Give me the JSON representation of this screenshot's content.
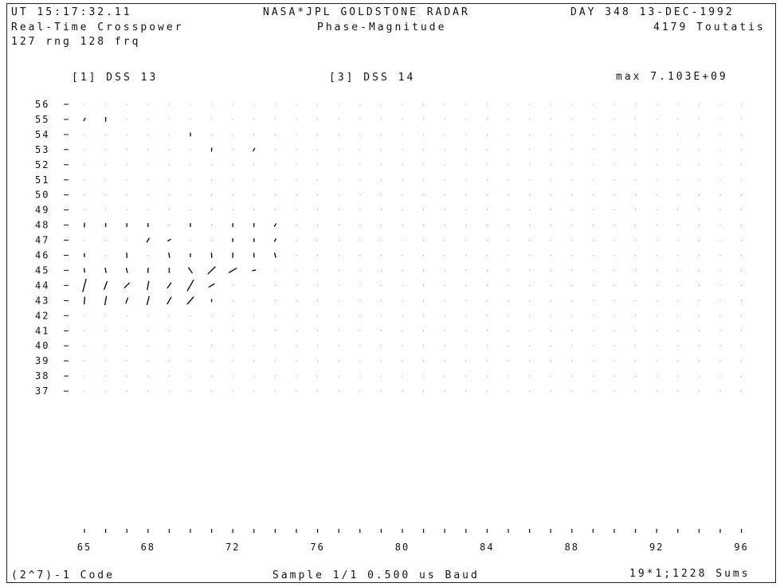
{
  "header": {
    "ut_time": "UT 15:17:32.11",
    "mode": "Real-Time Crosspower",
    "dims": "127 rng 128 frq",
    "title": "NASA*JPL GOLDSTONE RADAR",
    "subtitle": "Phase-Magnitude",
    "date": "DAY 348 13-DEC-1992",
    "target": "4179 Toutatis",
    "station_a": "[1] DSS 13",
    "station_b": "[3] DSS 14",
    "max_label": "max 7.103E+09"
  },
  "footer": {
    "code": "(2^7)-1 Code",
    "sample": "Sample 1/1 0.500 us Baud",
    "sums": "19*1;1228 Sums"
  },
  "chart_data": {
    "type": "scatter",
    "title": "Phase-Magnitude",
    "xlabel": "",
    "ylabel": "",
    "x_ticks": [
      65,
      68,
      72,
      76,
      80,
      84,
      88,
      92,
      96
    ],
    "y_ticks": [
      56,
      55,
      54,
      53,
      52,
      51,
      50,
      49,
      48,
      47,
      46,
      45,
      44,
      43,
      42,
      41,
      40,
      39,
      38,
      37
    ],
    "xlim": [
      65,
      96
    ],
    "ylim": [
      37,
      56
    ],
    "grid": "dots",
    "vectors": [
      {
        "x": 65,
        "y": 45,
        "len": 0.25,
        "angle": 80
      },
      {
        "x": 66,
        "y": 45,
        "len": 0.3,
        "angle": 80
      },
      {
        "x": 67,
        "y": 45,
        "len": 0.3,
        "angle": 75
      },
      {
        "x": 68,
        "y": 45,
        "len": 0.3,
        "angle": 95
      },
      {
        "x": 69,
        "y": 45,
        "len": 0.3,
        "angle": 90
      },
      {
        "x": 70,
        "y": 45,
        "len": 0.4,
        "angle": 55
      },
      {
        "x": 71,
        "y": 45,
        "len": 0.65,
        "angle": 135
      },
      {
        "x": 72,
        "y": 45,
        "len": 0.55,
        "angle": 150
      },
      {
        "x": 73,
        "y": 45,
        "len": 0.2,
        "angle": 170
      },
      {
        "x": 65,
        "y": 44,
        "len": 0.85,
        "angle": 105
      },
      {
        "x": 66,
        "y": 44,
        "len": 0.55,
        "angle": 110
      },
      {
        "x": 67,
        "y": 44,
        "len": 0.45,
        "angle": 135
      },
      {
        "x": 68,
        "y": 44,
        "len": 0.55,
        "angle": 100
      },
      {
        "x": 69,
        "y": 44,
        "len": 0.4,
        "angle": 125
      },
      {
        "x": 70,
        "y": 44,
        "len": 0.8,
        "angle": 120
      },
      {
        "x": 71,
        "y": 44,
        "len": 0.4,
        "angle": 150
      },
      {
        "x": 65,
        "y": 43,
        "len": 0.45,
        "angle": 95
      },
      {
        "x": 66,
        "y": 43,
        "len": 0.55,
        "angle": 100
      },
      {
        "x": 67,
        "y": 43,
        "len": 0.35,
        "angle": 110
      },
      {
        "x": 68,
        "y": 43,
        "len": 0.55,
        "angle": 105
      },
      {
        "x": 69,
        "y": 43,
        "len": 0.5,
        "angle": 120
      },
      {
        "x": 70,
        "y": 43,
        "len": 0.6,
        "angle": 130
      },
      {
        "x": 71,
        "y": 43,
        "len": 0.15,
        "angle": 90
      },
      {
        "x": 65,
        "y": 46,
        "len": 0.2,
        "angle": 90
      },
      {
        "x": 67,
        "y": 46,
        "len": 0.3,
        "angle": 85
      },
      {
        "x": 69,
        "y": 46,
        "len": 0.3,
        "angle": 80
      },
      {
        "x": 70,
        "y": 46,
        "len": 0.2,
        "angle": 90
      },
      {
        "x": 71,
        "y": 46,
        "len": 0.3,
        "angle": 85
      },
      {
        "x": 72,
        "y": 46,
        "len": 0.3,
        "angle": 95
      },
      {
        "x": 73,
        "y": 46,
        "len": 0.25,
        "angle": 85
      },
      {
        "x": 74,
        "y": 46,
        "len": 0.3,
        "angle": 75
      },
      {
        "x": 68,
        "y": 47,
        "len": 0.3,
        "angle": 120
      },
      {
        "x": 69,
        "y": 47,
        "len": 0.2,
        "angle": 150
      },
      {
        "x": 72,
        "y": 47,
        "len": 0.2,
        "angle": 90
      },
      {
        "x": 73,
        "y": 47,
        "len": 0.2,
        "angle": 90
      },
      {
        "x": 74,
        "y": 47,
        "len": 0.2,
        "angle": 120
      },
      {
        "x": 65,
        "y": 48,
        "len": 0.25,
        "angle": 90
      },
      {
        "x": 66,
        "y": 48,
        "len": 0.2,
        "angle": 90
      },
      {
        "x": 67,
        "y": 48,
        "len": 0.2,
        "angle": 90
      },
      {
        "x": 68,
        "y": 48,
        "len": 0.2,
        "angle": 90
      },
      {
        "x": 70,
        "y": 48,
        "len": 0.2,
        "angle": 90
      },
      {
        "x": 72,
        "y": 48,
        "len": 0.2,
        "angle": 90
      },
      {
        "x": 73,
        "y": 48,
        "len": 0.2,
        "angle": 90
      },
      {
        "x": 74,
        "y": 48,
        "len": 0.2,
        "angle": 120
      },
      {
        "x": 65,
        "y": 55,
        "len": 0.2,
        "angle": 120
      },
      {
        "x": 66,
        "y": 55,
        "len": 0.25,
        "angle": 90
      },
      {
        "x": 70,
        "y": 54,
        "len": 0.2,
        "angle": 90
      },
      {
        "x": 73,
        "y": 53,
        "len": 0.2,
        "angle": 120
      },
      {
        "x": 71,
        "y": 53,
        "len": 0.2,
        "angle": 90
      }
    ]
  }
}
